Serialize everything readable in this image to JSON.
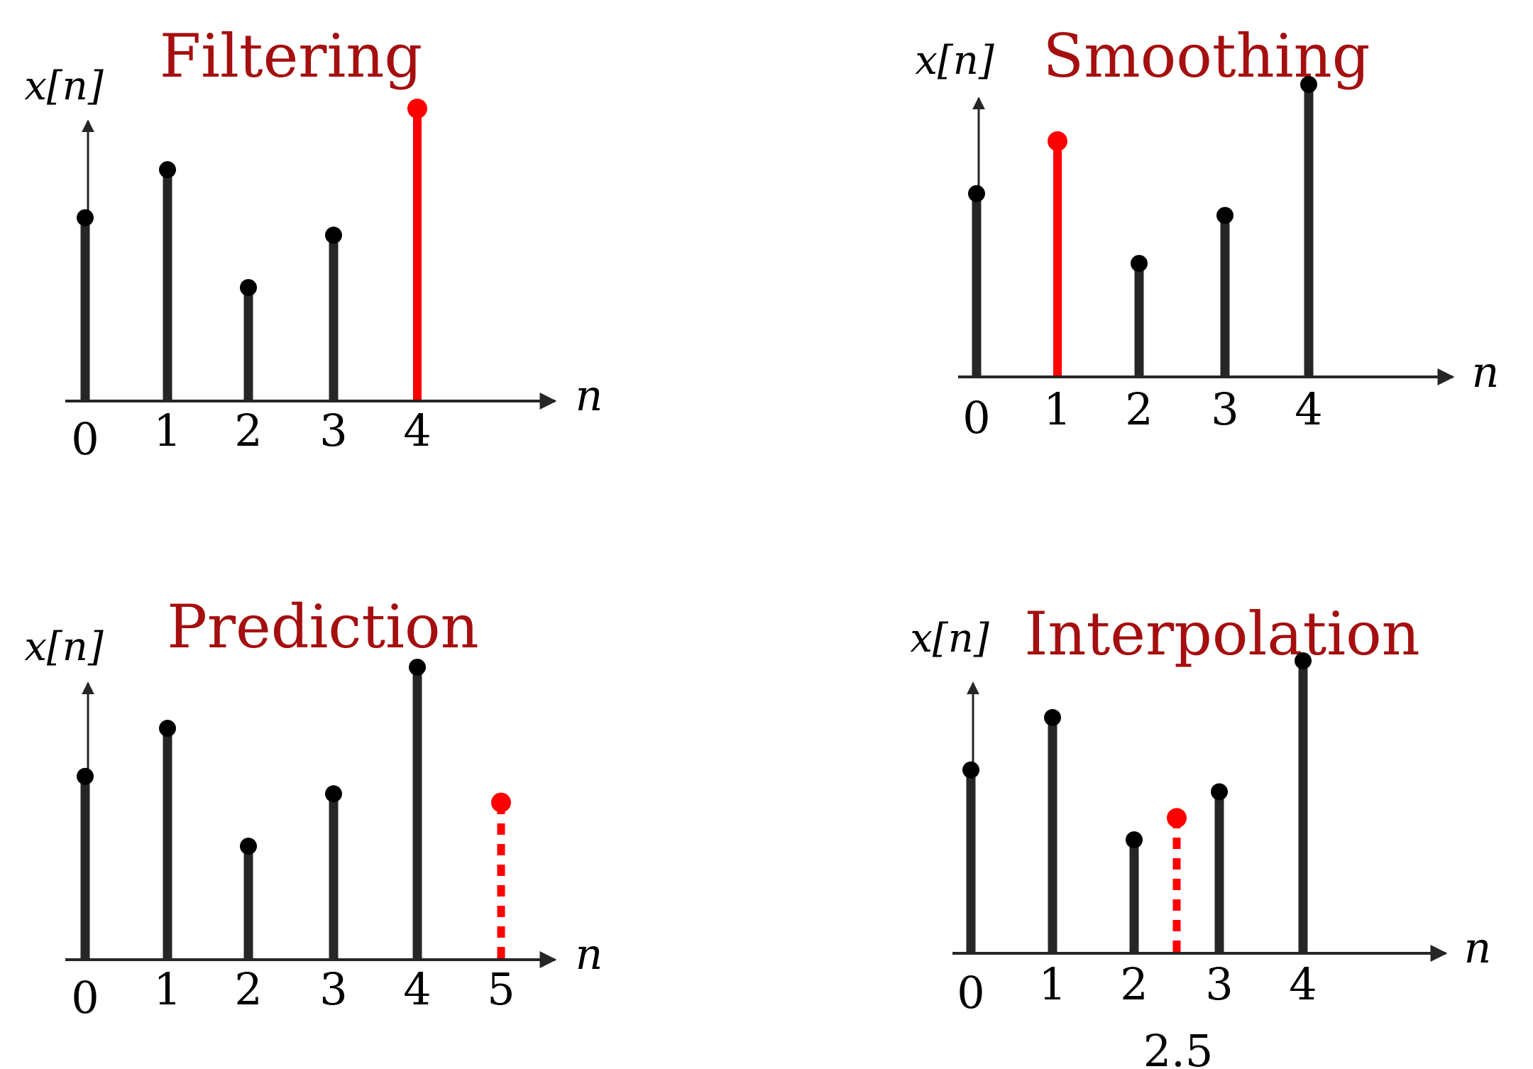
{
  "colors": {
    "stem": "#262626",
    "highlight": "#ff0000",
    "title": "#a50f0f",
    "axis": "#262626",
    "text": "#000000"
  },
  "chart_data": [
    {
      "type": "stem",
      "title": "Filtering",
      "ylabel": "x[n]",
      "xlabel": "n",
      "ticks": [
        "0",
        "1",
        "2",
        "3",
        "4"
      ],
      "stems": [
        {
          "n": 0,
          "value": 0.42,
          "highlight": false,
          "dashed": false
        },
        {
          "n": 1,
          "value": 0.53,
          "highlight": false,
          "dashed": false
        },
        {
          "n": 2,
          "value": 0.26,
          "highlight": false,
          "dashed": false
        },
        {
          "n": 3,
          "value": 0.38,
          "highlight": false,
          "dashed": false
        },
        {
          "n": 4,
          "value": 0.67,
          "highlight": true,
          "dashed": false
        }
      ],
      "extra_label": ""
    },
    {
      "type": "stem",
      "title": "Smoothing",
      "ylabel": "x[n]",
      "xlabel": "n",
      "ticks": [
        "0",
        "1",
        "2",
        "3",
        "4"
      ],
      "stems": [
        {
          "n": 0,
          "value": 0.42,
          "highlight": false,
          "dashed": false
        },
        {
          "n": 1,
          "value": 0.54,
          "highlight": true,
          "dashed": false
        },
        {
          "n": 2,
          "value": 0.26,
          "highlight": false,
          "dashed": false
        },
        {
          "n": 3,
          "value": 0.37,
          "highlight": false,
          "dashed": false
        },
        {
          "n": 4,
          "value": 0.67,
          "highlight": false,
          "dashed": false
        }
      ],
      "extra_label": ""
    },
    {
      "type": "stem",
      "title": "Prediction",
      "ylabel": "x[n]",
      "xlabel": "n",
      "ticks": [
        "0",
        "1",
        "2",
        "3",
        "4",
        "5"
      ],
      "stems": [
        {
          "n": 0,
          "value": 0.42,
          "highlight": false,
          "dashed": false
        },
        {
          "n": 1,
          "value": 0.53,
          "highlight": false,
          "dashed": false
        },
        {
          "n": 2,
          "value": 0.26,
          "highlight": false,
          "dashed": false
        },
        {
          "n": 3,
          "value": 0.38,
          "highlight": false,
          "dashed": false
        },
        {
          "n": 4,
          "value": 0.67,
          "highlight": false,
          "dashed": false
        },
        {
          "n": 5,
          "value": 0.36,
          "highlight": true,
          "dashed": true
        }
      ],
      "extra_label": ""
    },
    {
      "type": "stem",
      "title": "Interpolation",
      "ylabel": "x[n]",
      "xlabel": "n",
      "ticks": [
        "0",
        "1",
        "2",
        "3",
        "4"
      ],
      "stems": [
        {
          "n": 0,
          "value": 0.42,
          "highlight": false,
          "dashed": false
        },
        {
          "n": 1,
          "value": 0.54,
          "highlight": false,
          "dashed": false
        },
        {
          "n": 2,
          "value": 0.26,
          "highlight": false,
          "dashed": false
        },
        {
          "n": 2.5,
          "value": 0.31,
          "highlight": true,
          "dashed": true
        },
        {
          "n": 3,
          "value": 0.37,
          "highlight": false,
          "dashed": false
        },
        {
          "n": 4,
          "value": 0.67,
          "highlight": false,
          "dashed": false
        }
      ],
      "extra_label": "2.5"
    }
  ]
}
